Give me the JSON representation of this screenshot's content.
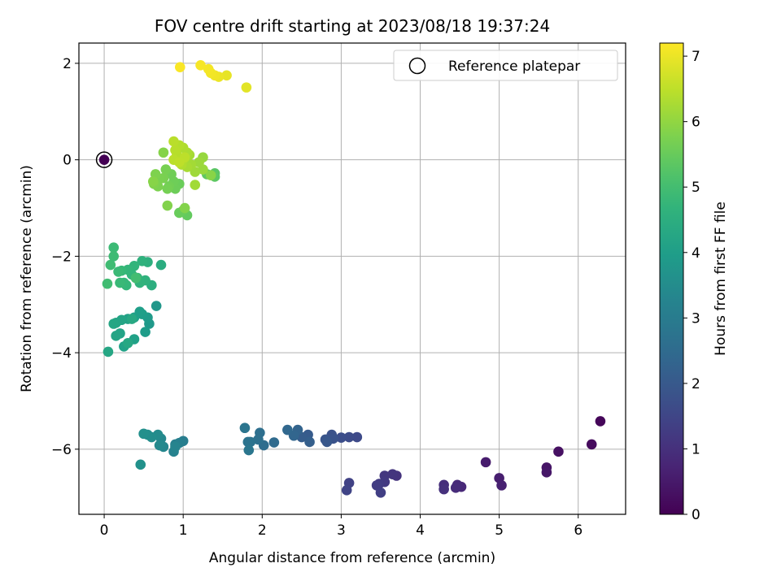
{
  "chart_data": {
    "type": "scatter",
    "title": "FOV centre drift starting at 2023/08/18 19:37:24",
    "xlabel": "Angular distance from reference (arcmin)",
    "ylabel": "Rotation from reference (arcmin)",
    "xlim": [
      -0.32,
      6.6
    ],
    "ylim": [
      -7.35,
      2.42
    ],
    "xticks": [
      0,
      1,
      2,
      3,
      4,
      5,
      6
    ],
    "yticks": [
      -6,
      -4,
      -2,
      0,
      2
    ],
    "grid": true,
    "legend": {
      "placement": "top-right",
      "entries": [
        "Reference platepar"
      ]
    },
    "colorbar": {
      "label": "Hours from first FF file",
      "range": [
        0,
        7.2
      ],
      "ticks": [
        0,
        1,
        2,
        3,
        4,
        5,
        6,
        7
      ],
      "colormap": "viridis"
    },
    "reference_point": {
      "x": 0,
      "y": 0,
      "t": 0
    },
    "points": [
      {
        "x": 6.28,
        "y": -5.42,
        "t": 0.1
      },
      {
        "x": 6.17,
        "y": -5.9,
        "t": 0.2
      },
      {
        "x": 5.75,
        "y": -6.05,
        "t": 0.3
      },
      {
        "x": 5.6,
        "y": -6.38,
        "t": 0.4
      },
      {
        "x": 5.6,
        "y": -6.48,
        "t": 0.45
      },
      {
        "x": 4.83,
        "y": -6.27,
        "t": 0.55
      },
      {
        "x": 5.0,
        "y": -6.6,
        "t": 0.6
      },
      {
        "x": 5.03,
        "y": -6.75,
        "t": 0.65
      },
      {
        "x": 4.52,
        "y": -6.78,
        "t": 0.8
      },
      {
        "x": 4.47,
        "y": -6.74,
        "t": 0.85
      },
      {
        "x": 4.45,
        "y": -6.8,
        "t": 0.9
      },
      {
        "x": 4.3,
        "y": -6.74,
        "t": 0.95
      },
      {
        "x": 4.3,
        "y": -6.83,
        "t": 1.0
      },
      {
        "x": 3.7,
        "y": -6.55,
        "t": 1.05
      },
      {
        "x": 3.65,
        "y": -6.52,
        "t": 1.1
      },
      {
        "x": 3.55,
        "y": -6.55,
        "t": 1.15
      },
      {
        "x": 3.55,
        "y": -6.68,
        "t": 1.2
      },
      {
        "x": 3.48,
        "y": -6.72,
        "t": 1.25
      },
      {
        "x": 3.45,
        "y": -6.75,
        "t": 1.3
      },
      {
        "x": 3.5,
        "y": -6.9,
        "t": 1.35
      },
      {
        "x": 3.1,
        "y": -6.7,
        "t": 1.4
      },
      {
        "x": 3.07,
        "y": -6.85,
        "t": 1.45
      },
      {
        "x": 3.2,
        "y": -5.75,
        "t": 1.6
      },
      {
        "x": 3.1,
        "y": -5.75,
        "t": 1.65
      },
      {
        "x": 3.0,
        "y": -5.76,
        "t": 1.7
      },
      {
        "x": 2.88,
        "y": -5.7,
        "t": 1.8
      },
      {
        "x": 2.9,
        "y": -5.78,
        "t": 1.85
      },
      {
        "x": 2.8,
        "y": -5.8,
        "t": 1.9
      },
      {
        "x": 2.82,
        "y": -5.85,
        "t": 1.95
      },
      {
        "x": 2.58,
        "y": -5.7,
        "t": 2.05
      },
      {
        "x": 2.5,
        "y": -5.75,
        "t": 2.1
      },
      {
        "x": 2.6,
        "y": -5.85,
        "t": 2.15
      },
      {
        "x": 2.45,
        "y": -5.6,
        "t": 2.3
      },
      {
        "x": 2.4,
        "y": -5.72,
        "t": 2.35
      },
      {
        "x": 2.32,
        "y": -5.6,
        "t": 2.4
      },
      {
        "x": 2.15,
        "y": -5.86,
        "t": 2.5
      },
      {
        "x": 2.02,
        "y": -5.92,
        "t": 2.55
      },
      {
        "x": 1.97,
        "y": -5.66,
        "t": 2.6
      },
      {
        "x": 1.95,
        "y": -5.8,
        "t": 2.65
      },
      {
        "x": 1.85,
        "y": -5.85,
        "t": 2.7
      },
      {
        "x": 1.82,
        "y": -5.85,
        "t": 2.75
      },
      {
        "x": 1.78,
        "y": -5.56,
        "t": 2.8
      },
      {
        "x": 1.83,
        "y": -6.02,
        "t": 2.82
      },
      {
        "x": 1.0,
        "y": -5.83,
        "t": 3.05
      },
      {
        "x": 0.95,
        "y": -5.87,
        "t": 3.1
      },
      {
        "x": 0.9,
        "y": -5.9,
        "t": 3.15
      },
      {
        "x": 0.88,
        "y": -6.05,
        "t": 3.2
      },
      {
        "x": 0.9,
        "y": -5.95,
        "t": 3.25
      },
      {
        "x": 0.75,
        "y": -5.95,
        "t": 3.3
      },
      {
        "x": 0.72,
        "y": -5.78,
        "t": 3.35
      },
      {
        "x": 0.7,
        "y": -5.92,
        "t": 3.4
      },
      {
        "x": 0.68,
        "y": -5.7,
        "t": 3.45
      },
      {
        "x": 0.6,
        "y": -5.75,
        "t": 3.5
      },
      {
        "x": 0.55,
        "y": -5.7,
        "t": 3.55
      },
      {
        "x": 0.5,
        "y": -5.68,
        "t": 3.6
      },
      {
        "x": 0.46,
        "y": -6.32,
        "t": 3.62
      },
      {
        "x": 0.66,
        "y": -3.03,
        "t": 3.8
      },
      {
        "x": 0.57,
        "y": -3.4,
        "t": 3.85
      },
      {
        "x": 0.55,
        "y": -3.27,
        "t": 3.9
      },
      {
        "x": 0.52,
        "y": -3.57,
        "t": 3.95
      },
      {
        "x": 0.48,
        "y": -3.2,
        "t": 4.0
      },
      {
        "x": 0.45,
        "y": -3.15,
        "t": 4.02
      },
      {
        "x": 0.38,
        "y": -3.27,
        "t": 4.05
      },
      {
        "x": 0.38,
        "y": -3.72,
        "t": 4.08
      },
      {
        "x": 0.3,
        "y": -3.3,
        "t": 4.1
      },
      {
        "x": 0.25,
        "y": -3.87,
        "t": 4.12
      },
      {
        "x": 0.2,
        "y": -3.6,
        "t": 4.15
      },
      {
        "x": 0.22,
        "y": -3.32,
        "t": 4.18
      },
      {
        "x": 0.15,
        "y": -3.65,
        "t": 4.2
      },
      {
        "x": 0.15,
        "y": -3.38,
        "t": 4.22
      },
      {
        "x": 0.12,
        "y": -3.4,
        "t": 4.25
      },
      {
        "x": 0.05,
        "y": -3.98,
        "t": 4.27
      },
      {
        "x": 0.3,
        "y": -3.8,
        "t": 4.3
      },
      {
        "x": 0.35,
        "y": -3.3,
        "t": 4.32
      },
      {
        "x": 0.72,
        "y": -2.18,
        "t": 4.45
      },
      {
        "x": 0.6,
        "y": -2.6,
        "t": 4.5
      },
      {
        "x": 0.55,
        "y": -2.12,
        "t": 4.55
      },
      {
        "x": 0.52,
        "y": -2.5,
        "t": 4.6
      },
      {
        "x": 0.48,
        "y": -2.1,
        "t": 4.62
      },
      {
        "x": 0.45,
        "y": -2.55,
        "t": 4.65
      },
      {
        "x": 0.42,
        "y": -2.45,
        "t": 4.68
      },
      {
        "x": 0.38,
        "y": -2.2,
        "t": 4.7
      },
      {
        "x": 0.35,
        "y": -2.38,
        "t": 4.72
      },
      {
        "x": 0.3,
        "y": -2.28,
        "t": 4.75
      },
      {
        "x": 0.28,
        "y": -2.6,
        "t": 4.78
      },
      {
        "x": 0.25,
        "y": -2.55,
        "t": 4.8
      },
      {
        "x": 0.22,
        "y": -2.3,
        "t": 4.82
      },
      {
        "x": 0.2,
        "y": -2.55,
        "t": 4.85
      },
      {
        "x": 0.18,
        "y": -2.32,
        "t": 4.88
      },
      {
        "x": 0.12,
        "y": -1.82,
        "t": 4.9
      },
      {
        "x": 0.12,
        "y": -2.0,
        "t": 4.92
      },
      {
        "x": 0.08,
        "y": -2.18,
        "t": 4.95
      },
      {
        "x": 0.04,
        "y": -2.57,
        "t": 4.97
      },
      {
        "x": 0.4,
        "y": -2.45,
        "t": 4.99
      },
      {
        "x": 1.4,
        "y": -0.28,
        "t": 5.3
      },
      {
        "x": 1.4,
        "y": -0.35,
        "t": 5.35
      },
      {
        "x": 1.3,
        "y": -0.3,
        "t": 5.4
      },
      {
        "x": 1.05,
        "y": -1.15,
        "t": 5.45
      },
      {
        "x": 1.0,
        "y": -1.05,
        "t": 5.5
      },
      {
        "x": 0.95,
        "y": -1.1,
        "t": 5.52
      },
      {
        "x": 0.95,
        "y": -0.5,
        "t": 5.55
      },
      {
        "x": 0.9,
        "y": -0.6,
        "t": 5.58
      },
      {
        "x": 0.88,
        "y": -0.45,
        "t": 5.6
      },
      {
        "x": 0.85,
        "y": -0.3,
        "t": 5.62
      },
      {
        "x": 0.82,
        "y": -0.55,
        "t": 5.65
      },
      {
        "x": 0.8,
        "y": -0.6,
        "t": 5.68
      },
      {
        "x": 0.78,
        "y": -0.2,
        "t": 5.7
      },
      {
        "x": 0.75,
        "y": -0.38,
        "t": 5.72
      },
      {
        "x": 0.7,
        "y": -0.4,
        "t": 5.74
      },
      {
        "x": 0.68,
        "y": -0.55,
        "t": 5.76
      },
      {
        "x": 0.65,
        "y": -0.3,
        "t": 5.78
      },
      {
        "x": 0.63,
        "y": -0.5,
        "t": 5.8
      },
      {
        "x": 0.8,
        "y": -0.95,
        "t": 5.82
      },
      {
        "x": 1.02,
        "y": -1.0,
        "t": 5.84
      },
      {
        "x": 0.75,
        "y": 0.15,
        "t": 5.86
      },
      {
        "x": 0.62,
        "y": -0.45,
        "t": 5.88
      },
      {
        "x": 1.35,
        "y": -0.32,
        "t": 5.9
      },
      {
        "x": 1.25,
        "y": 0.05,
        "t": 6.05
      },
      {
        "x": 1.25,
        "y": -0.2,
        "t": 6.1
      },
      {
        "x": 1.2,
        "y": -0.05,
        "t": 6.12
      },
      {
        "x": 1.15,
        "y": -0.25,
        "t": 6.15
      },
      {
        "x": 1.15,
        "y": -0.52,
        "t": 6.18
      },
      {
        "x": 1.1,
        "y": -0.1,
        "t": 6.2
      },
      {
        "x": 1.08,
        "y": 0.1,
        "t": 6.22
      },
      {
        "x": 1.05,
        "y": -0.15,
        "t": 6.25
      },
      {
        "x": 1.05,
        "y": 0.15,
        "t": 6.28
      },
      {
        "x": 1.0,
        "y": 0.0,
        "t": 6.3
      },
      {
        "x": 1.0,
        "y": 0.25,
        "t": 6.32
      },
      {
        "x": 0.98,
        "y": -0.1,
        "t": 6.35
      },
      {
        "x": 0.95,
        "y": 0.3,
        "t": 6.38
      },
      {
        "x": 0.92,
        "y": 0.1,
        "t": 6.4
      },
      {
        "x": 0.9,
        "y": 0.2,
        "t": 6.42
      },
      {
        "x": 0.88,
        "y": 0.38,
        "t": 6.44
      },
      {
        "x": 0.88,
        "y": 0.0,
        "t": 6.46
      },
      {
        "x": 1.02,
        "y": 0.05,
        "t": 6.48
      },
      {
        "x": 0.95,
        "y": -0.05,
        "t": 6.5
      },
      {
        "x": 1.8,
        "y": 1.5,
        "t": 6.9
      },
      {
        "x": 1.55,
        "y": 1.75,
        "t": 6.95
      },
      {
        "x": 1.45,
        "y": 1.72,
        "t": 7.0
      },
      {
        "x": 1.4,
        "y": 1.75,
        "t": 7.05
      },
      {
        "x": 1.35,
        "y": 1.8,
        "t": 7.08
      },
      {
        "x": 1.32,
        "y": 1.88,
        "t": 7.1
      },
      {
        "x": 1.22,
        "y": 1.96,
        "t": 7.12
      },
      {
        "x": 0.96,
        "y": 1.92,
        "t": 7.15
      }
    ]
  }
}
